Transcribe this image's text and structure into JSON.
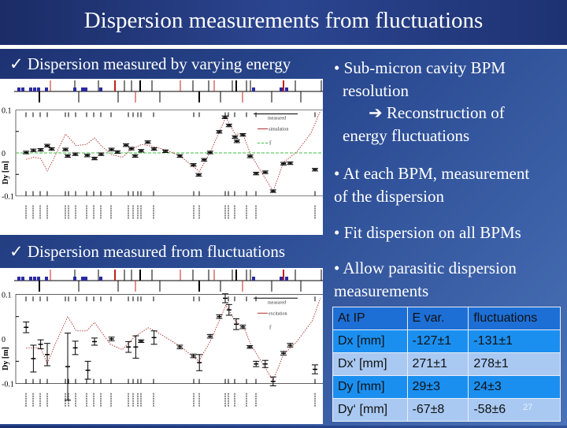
{
  "title": "Dispersion measurements from fluctuations",
  "left": {
    "heading1": "✓ Dispersion measured by varying energy",
    "heading2": "✓ Dispersion measured from fluctuations"
  },
  "right": {
    "b1_line1": "• Sub-micron cavity BPM",
    "b1_line2": "resolution",
    "b1_sub1": "➔ Reconstruction of",
    "b1_sub2": "energy fluctuations",
    "b2_line1": "• At each BPM, measurement",
    "b2_line2": "of the dispersion",
    "b3": "• Fit dispersion on all BPMs",
    "b4_line1": "• Allow parasitic dispersion",
    "b4_line2": "measurements"
  },
  "table": {
    "header": [
      "At IP",
      "E var.",
      "fluctuations"
    ],
    "rows": [
      [
        "Dx [mm]",
        "-127±1",
        "-131±1"
      ],
      [
        "Dx’ [mm]",
        "271±1",
        "278±1"
      ],
      [
        "Dy [mm]",
        "29±3",
        "24±3"
      ],
      [
        "Dy‘ [mm]",
        "-67±8",
        "-58±6"
      ]
    ]
  },
  "page_number": "27",
  "chart_data": [
    {
      "type": "line",
      "ylabel": "Dy [m]",
      "ylim": [
        -0.1,
        0.1
      ],
      "yticks": [
        "0.1",
        "0",
        "-0.1"
      ],
      "legend": [
        "measured",
        "simulation",
        "f"
      ],
      "legend_placement": "top-right",
      "colors": {
        "measured": "#000000",
        "model": "#b03030",
        "reference": "#3cc040"
      },
      "measured": [
        [
          8.3,
          0.001
        ],
        [
          10.6,
          0.006
        ],
        [
          12.9,
          0.007
        ],
        [
          15,
          0.017
        ],
        [
          16.4,
          0.009
        ],
        [
          20.8,
          0.008
        ],
        [
          21.5,
          -0.007
        ],
        [
          23.9,
          -0.003
        ],
        [
          27.7,
          -0.006
        ],
        [
          30,
          -0.013
        ],
        [
          32.1,
          -0.003
        ],
        [
          35.4,
          0.008
        ],
        [
          37.3,
          0.002
        ],
        [
          40,
          0.018
        ],
        [
          41.7,
          0.01
        ],
        [
          42.9,
          -0.007
        ],
        [
          44.8,
          0.005
        ],
        [
          46.9,
          0.025
        ],
        [
          48.9,
          0.009
        ],
        [
          52.5,
          0.004
        ],
        [
          57.1,
          -0.007
        ],
        [
          61.4,
          -0.028
        ],
        [
          63.1,
          -0.051
        ],
        [
          64.8,
          -0.016
        ],
        [
          66.7,
          0.001
        ],
        [
          69.6,
          0.049
        ],
        [
          71.4,
          0.083
        ],
        [
          72.7,
          0.064
        ],
        [
          74.6,
          0.037
        ],
        [
          75.2,
          0.027
        ],
        [
          77.1,
          0.042
        ],
        [
          79.4,
          -0.008
        ],
        [
          81.3,
          -0.048
        ],
        [
          84.2,
          -0.045
        ],
        [
          86.7,
          -0.089
        ],
        [
          90,
          -0.025
        ],
        [
          92.1,
          -0.024
        ],
        [
          100,
          -0.039
        ]
      ],
      "model": [
        [
          8.3,
          -0.015
        ],
        [
          10.6,
          -0.01
        ],
        [
          12.9,
          -0.013
        ],
        [
          15,
          -0.042
        ],
        [
          16.7,
          -0.019
        ],
        [
          20.8,
          0.044
        ],
        [
          24.2,
          0.017
        ],
        [
          27.5,
          0.02
        ],
        [
          30,
          0.035
        ],
        [
          32.1,
          0.017
        ],
        [
          35.4,
          -0.004
        ],
        [
          38.8,
          -0.01
        ],
        [
          41.7,
          0.008
        ],
        [
          45,
          0.02
        ],
        [
          49.2,
          0.014
        ],
        [
          53.3,
          0.005
        ],
        [
          57.1,
          -0.007
        ],
        [
          63.3,
          -0.043
        ],
        [
          66.7,
          0.001
        ],
        [
          69.6,
          0.049
        ],
        [
          71.7,
          0.083
        ],
        [
          74.6,
          0.044
        ],
        [
          77.1,
          0.044
        ],
        [
          79.6,
          -0.004
        ],
        [
          82.1,
          -0.034
        ],
        [
          86.7,
          -0.089
        ],
        [
          90,
          -0.022
        ],
        [
          94.2,
          0.002
        ],
        [
          98.8,
          0.047
        ],
        [
          101.7,
          0.098
        ]
      ],
      "reference": 0
    },
    {
      "type": "line",
      "ylabel": "Dy [m]",
      "ylim": [
        -0.1,
        0.1
      ],
      "yticks": [
        "0.1",
        "0",
        "-0.1"
      ],
      "legend": [
        "measured",
        "excitation",
        "f"
      ],
      "legend_placement": "top-right",
      "colors": {
        "measured": "#000000",
        "model": "#b03030"
      },
      "measured": [
        [
          8.3,
          0.026,
          0.012
        ],
        [
          10.6,
          -0.044,
          0.03
        ],
        [
          12.9,
          -0.012,
          0.01
        ],
        [
          15,
          -0.035,
          0.025
        ],
        [
          21.5,
          -0.062,
          0.075
        ],
        [
          23.9,
          -0.02,
          0.015
        ],
        [
          27.9,
          -0.07,
          0.02
        ],
        [
          30,
          -0.006,
          0.008
        ],
        [
          35.4,
          0,
          0.004
        ],
        [
          40.8,
          -0.018,
          0.012
        ],
        [
          43.1,
          -0.018,
          0.025
        ],
        [
          44.8,
          -0.005,
          0.003
        ],
        [
          48.9,
          0.003,
          0.015
        ],
        [
          57.1,
          -0.018,
          0.004
        ],
        [
          61.4,
          -0.038,
          0.004
        ],
        [
          63.3,
          -0.053,
          0.018
        ],
        [
          66.7,
          0.006,
          0.004
        ],
        [
          69.6,
          0.05,
          0.004
        ],
        [
          71.5,
          0.091,
          0.01
        ],
        [
          72.7,
          0.065,
          0.012
        ],
        [
          75,
          0.033,
          0.012
        ],
        [
          77.1,
          0.027,
          0.004
        ],
        [
          79.3,
          -0.018,
          0.003
        ],
        [
          81.3,
          -0.056,
          0.006
        ],
        [
          84.2,
          -0.056,
          0.008
        ],
        [
          86.7,
          -0.095,
          0.01
        ],
        [
          90,
          -0.032,
          0.004
        ],
        [
          92.1,
          -0.014,
          0.004
        ],
        [
          100,
          -0.068,
          0.01
        ]
      ],
      "model": [
        [
          8.3,
          -0.02
        ],
        [
          10.6,
          -0.02
        ],
        [
          12.9,
          -0.019
        ],
        [
          15,
          -0.056
        ],
        [
          17.5,
          -0.012
        ],
        [
          21.5,
          0.05
        ],
        [
          24.2,
          0.018
        ],
        [
          27.5,
          0.018
        ],
        [
          30,
          0.037
        ],
        [
          35,
          -0.012
        ],
        [
          38.8,
          -0.024
        ],
        [
          42.9,
          0.006
        ],
        [
          47.1,
          0.025
        ],
        [
          50,
          0.015
        ],
        [
          57.5,
          -0.018
        ],
        [
          63.1,
          -0.05
        ],
        [
          66.7,
          -0.006
        ],
        [
          70,
          0.047
        ],
        [
          71.7,
          0.076
        ],
        [
          74.6,
          0.041
        ],
        [
          77.5,
          0.024
        ],
        [
          79.6,
          -0.012
        ],
        [
          82.1,
          -0.041
        ],
        [
          86.7,
          -0.093
        ],
        [
          90,
          -0.035
        ],
        [
          94.2,
          -0.006
        ],
        [
          99.2,
          0.041
        ],
        [
          101.7,
          0.091
        ]
      ]
    }
  ]
}
